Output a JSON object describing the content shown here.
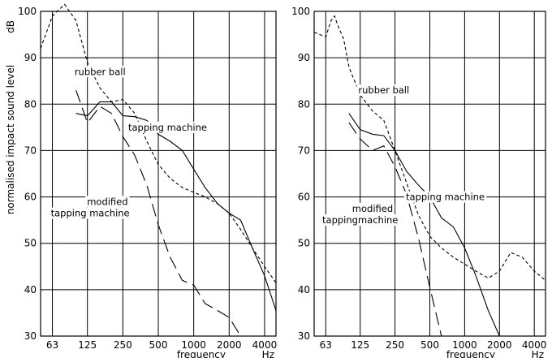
{
  "chart_data": {
    "type": "line",
    "y_axis_label": "normalised impact sound level",
    "y_unit": "dB",
    "x_axis_label": "frequency",
    "x_unit": "Hz",
    "x_scale": "log",
    "xlim": [
      50,
      5000
    ],
    "ylim": [
      30,
      100
    ],
    "x_ticks": [
      63,
      125,
      250,
      500,
      1000,
      2000,
      4000
    ],
    "x_tick_labels": [
      "63",
      "125",
      "250",
      "500",
      "1000",
      "2000",
      "4000"
    ],
    "y_ticks": [
      30,
      40,
      50,
      60,
      70,
      80,
      90,
      100
    ],
    "y_tick_labels": [
      "30",
      "40",
      "50",
      "60",
      "70",
      "80",
      "90",
      "100"
    ],
    "grid": true,
    "panels": [
      {
        "id": "left",
        "series": [
          {
            "name": "rubber ball",
            "style": "short-dash",
            "points": [
              [
                50,
                92
              ],
              [
                63,
                99
              ],
              [
                80,
                101.5
              ],
              [
                100,
                98
              ],
              [
                125,
                89
              ],
              [
                160,
                83.5
              ],
              [
                200,
                80.5
              ],
              [
                250,
                81
              ],
              [
                315,
                78
              ],
              [
                400,
                72
              ],
              [
                500,
                67
              ],
              [
                630,
                64
              ],
              [
                800,
                62
              ],
              [
                1000,
                61
              ],
              [
                1250,
                60
              ],
              [
                1600,
                58.5
              ],
              [
                2000,
                56.5
              ],
              [
                2500,
                53
              ],
              [
                3150,
                49
              ],
              [
                4000,
                45
              ],
              [
                5000,
                41.5
              ]
            ]
          },
          {
            "name": "tapping machine",
            "style": "solid",
            "points": [
              [
                100,
                78
              ],
              [
                125,
                77.5
              ],
              [
                160,
                80.5
              ],
              [
                200,
                80.5
              ],
              [
                250,
                77.5
              ],
              [
                315,
                77.3
              ],
              [
                400,
                76.5
              ],
              [
                500,
                73.5
              ],
              [
                630,
                72
              ],
              [
                800,
                70
              ],
              [
                1000,
                66
              ],
              [
                1250,
                62
              ],
              [
                1600,
                58.5
              ],
              [
                2000,
                56.5
              ],
              [
                2500,
                55
              ],
              [
                3150,
                49
              ],
              [
                4000,
                43
              ],
              [
                5000,
                35.5
              ]
            ]
          },
          {
            "name": "modified tapping machine",
            "style": "long-dash",
            "points": [
              [
                100,
                83
              ],
              [
                125,
                76
              ],
              [
                160,
                79.5
              ],
              [
                200,
                78
              ],
              [
                250,
                73
              ],
              [
                315,
                69
              ],
              [
                400,
                62.5
              ],
              [
                500,
                54
              ],
              [
                630,
                47
              ],
              [
                800,
                42
              ],
              [
                1000,
                41
              ],
              [
                1250,
                37
              ],
              [
                1600,
                35.5
              ],
              [
                2000,
                34
              ],
              [
                2500,
                30
              ]
            ]
          }
        ],
        "labels": [
          {
            "text": "rubber ball",
            "x": 160,
            "y": 86.3
          },
          {
            "text": "tapping machine",
            "x": 600,
            "y": 74.3
          },
          {
            "text": "modified",
            "x": 185,
            "y": 58.3
          },
          {
            "text": "tapping machine",
            "x": 132,
            "y": 55.8
          }
        ]
      },
      {
        "id": "right",
        "series": [
          {
            "name": "rubber ball",
            "style": "short-dash",
            "points": [
              [
                50,
                95.5
              ],
              [
                56,
                95
              ],
              [
                63,
                94.5
              ],
              [
                70,
                98
              ],
              [
                75,
                99
              ],
              [
                80,
                97
              ],
              [
                90,
                94
              ],
              [
                100,
                88
              ],
              [
                125,
                82
              ],
              [
                160,
                78.5
              ],
              [
                200,
                76.5
              ],
              [
                250,
                70
              ],
              [
                315,
                63
              ],
              [
                400,
                56
              ],
              [
                500,
                51.5
              ],
              [
                630,
                49
              ],
              [
                800,
                47
              ],
              [
                1000,
                45.5
              ],
              [
                1250,
                44
              ],
              [
                1600,
                42.5
              ],
              [
                2000,
                44
              ],
              [
                2500,
                48
              ],
              [
                3150,
                47
              ],
              [
                4000,
                44
              ],
              [
                5000,
                42
              ]
            ]
          },
          {
            "name": "tapping machine",
            "style": "solid",
            "points": [
              [
                100,
                78
              ],
              [
                125,
                74.5
              ],
              [
                160,
                73.5
              ],
              [
                200,
                73.2
              ],
              [
                250,
                70
              ],
              [
                315,
                65.5
              ],
              [
                400,
                62.5
              ],
              [
                500,
                60
              ],
              [
                630,
                55.5
              ],
              [
                800,
                53.5
              ],
              [
                1000,
                49
              ],
              [
                1250,
                43
              ],
              [
                1600,
                35.5
              ],
              [
                2000,
                30
              ]
            ]
          },
          {
            "name": "modified tapping machine",
            "style": "long-dash",
            "points": [
              [
                100,
                76
              ],
              [
                125,
                72.5
              ],
              [
                160,
                70
              ],
              [
                200,
                71
              ],
              [
                250,
                66.5
              ],
              [
                315,
                60.5
              ],
              [
                400,
                51
              ],
              [
                500,
                40.5
              ],
              [
                630,
                30
              ]
            ]
          }
        ],
        "labels": [
          {
            "text": "rubber ball",
            "x": 200,
            "y": 82.3
          },
          {
            "text": "tapping machine",
            "x": 680,
            "y": 59.3
          },
          {
            "text": "modified",
            "x": 160,
            "y": 56.8
          },
          {
            "text": "tappingmachine",
            "x": 125,
            "y": 54.3
          }
        ]
      }
    ]
  }
}
